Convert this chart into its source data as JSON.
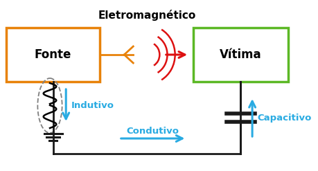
{
  "title": "Eletromagnético",
  "title_fontsize": 11,
  "title_fontweight": "bold",
  "title_color": "#000000",
  "fonte_label": "Fonte",
  "vitima_label": "Vítima",
  "indutivo_label": "Indutivo",
  "condutivo_label": "Condutivo",
  "capacitivo_label": "Capacitivo",
  "fonte_box_color": "#E8820A",
  "vitima_box_color": "#5CB825",
  "arrow_blue": "#29ABE2",
  "arrow_red": "#DD1111",
  "arrow_orange": "#E8820A",
  "wire_color": "#1A1A1A",
  "bg_color": "#FFFFFF",
  "figsize": [
    4.59,
    2.47
  ],
  "dpi": 100
}
